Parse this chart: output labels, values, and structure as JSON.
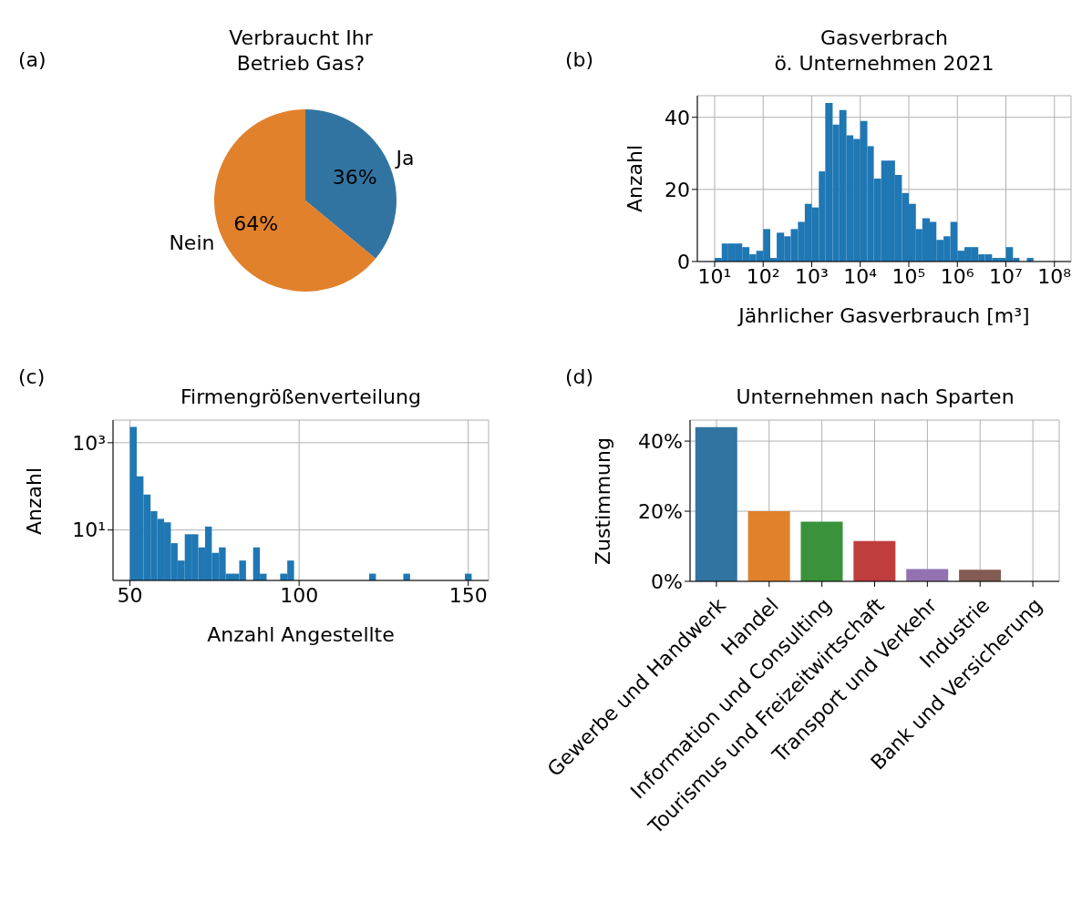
{
  "chart_data": [
    {
      "type": "pie",
      "title": "Verbraucht Ihr\nBetrieb Gas?",
      "annotations": [
        "(a)"
      ],
      "categories": [
        "Ja",
        "Nein"
      ],
      "values": [
        36,
        64
      ],
      "colors": [
        "#3274a1",
        "#e1812c"
      ],
      "value_labels": [
        "36%",
        "64%"
      ]
    },
    {
      "type": "histogram",
      "title": "Gasverbrach\nö. Unternehmen 2021",
      "annotations": [
        "(b)"
      ],
      "xlabel": "Jährlicher Gasverbrauch [m³]",
      "ylabel": "Anzahl",
      "log": "x",
      "grid": true,
      "color": "#1f77b4",
      "bins": [
        10,
        14,
        19,
        27,
        37,
        52,
        72,
        100,
        140,
        190,
        270,
        370,
        520,
        720,
        1000,
        1400,
        1900,
        2700,
        3700,
        5200,
        7200,
        10000,
        14000,
        19000,
        27000,
        37000,
        52000,
        72000,
        100000,
        140000,
        190000,
        270000,
        370000,
        520000,
        720000,
        1000000,
        1400000,
        1900000,
        2700000,
        3700000,
        5200000,
        7200000,
        10000000,
        14000000,
        19000000,
        27000000,
        37000000
      ],
      "values": [
        1,
        5,
        5,
        5,
        4,
        2,
        3,
        9,
        1,
        8,
        7,
        9,
        11,
        16,
        15,
        25,
        44,
        38,
        42,
        35,
        34,
        39,
        32,
        23,
        28,
        28,
        24,
        19,
        16,
        9,
        12,
        11,
        6,
        7,
        11,
        3,
        4,
        4,
        2,
        2,
        1,
        1,
        4,
        1,
        0,
        1
      ],
      "xlim": [
        4.4,
        220000000
      ],
      "xticks": [
        {
          "value": 10,
          "label": "10¹"
        },
        {
          "value": 100,
          "label": "10²"
        },
        {
          "value": 1000,
          "label": "10³"
        },
        {
          "value": 10000,
          "label": "10⁴"
        },
        {
          "value": 100000,
          "label": "10⁵"
        },
        {
          "value": 1000000,
          "label": "10⁶"
        },
        {
          "value": 10000000,
          "label": "10⁷"
        },
        {
          "value": 100000000,
          "label": "10⁸"
        }
      ],
      "ylim": [
        0,
        46
      ],
      "yticks": [
        0,
        20,
        40
      ]
    },
    {
      "type": "histogram",
      "title": "Firmengrößenverteilung",
      "annotations": [
        "(c)"
      ],
      "xlabel": "Anzahl Angestellte",
      "ylabel": "Anzahl",
      "log": "y",
      "grid": true,
      "color": "#1f77b4",
      "bins": [
        50,
        52,
        54,
        56.1,
        58.1,
        60.1,
        62.1,
        64.1,
        66.2,
        68.2,
        70.2,
        72.2,
        74.2,
        76.3,
        78.3,
        80.3,
        82.3,
        84.3,
        86.4,
        88.4,
        90.4,
        92.4,
        94.4,
        96.5,
        98.5,
        100.5,
        102.5,
        104.5,
        106.6,
        108.6,
        110.6,
        112.6,
        114.6,
        116.7,
        118.7,
        120.7,
        122.7,
        124.7,
        126.8,
        128.8,
        130.8,
        132.8,
        134.8,
        136.9,
        138.9,
        140.9,
        142.9,
        144.9,
        147,
        149,
        151
      ],
      "values": [
        2300,
        170,
        65,
        27,
        18,
        15,
        5,
        2,
        8,
        8,
        4,
        12,
        3,
        4,
        1,
        1,
        2,
        null,
        4,
        1,
        null,
        null,
        1,
        2,
        null,
        null,
        null,
        null,
        null,
        null,
        null,
        null,
        null,
        null,
        null,
        1,
        null,
        null,
        null,
        null,
        1,
        null,
        null,
        null,
        null,
        null,
        null,
        null,
        null,
        1
      ],
      "xlim": [
        45,
        156
      ],
      "xticks": [
        50,
        100,
        150
      ],
      "ylim": [
        0.7,
        3300
      ],
      "yticks": [
        {
          "value": 10,
          "label": "10¹"
        },
        {
          "value": 1000,
          "label": "10³"
        }
      ]
    },
    {
      "type": "bar",
      "title": "Unternehmen nach Sparten",
      "annotations": [
        "(d)"
      ],
      "ylabel": "Zustimmung",
      "grid": true,
      "categories": [
        "Gewerbe und Handwerk",
        "Handel",
        "Information und Consulting",
        "Tourismus und Freizeitwirtschaft",
        "Transport und Verkehr",
        "Industrie",
        "Bank und Versicherung"
      ],
      "values": [
        44,
        20,
        17,
        11.5,
        3.5,
        3.3,
        0
      ],
      "colors": [
        "#3274a1",
        "#e1812c",
        "#3a923a",
        "#c03d3e",
        "#9372b2",
        "#845b53",
        "#d684bd"
      ],
      "ylim": [
        0,
        46
      ],
      "yticks": [
        {
          "value": 0,
          "label": "0%"
        },
        {
          "value": 20,
          "label": "20%"
        },
        {
          "value": 40,
          "label": "40%"
        }
      ]
    }
  ]
}
